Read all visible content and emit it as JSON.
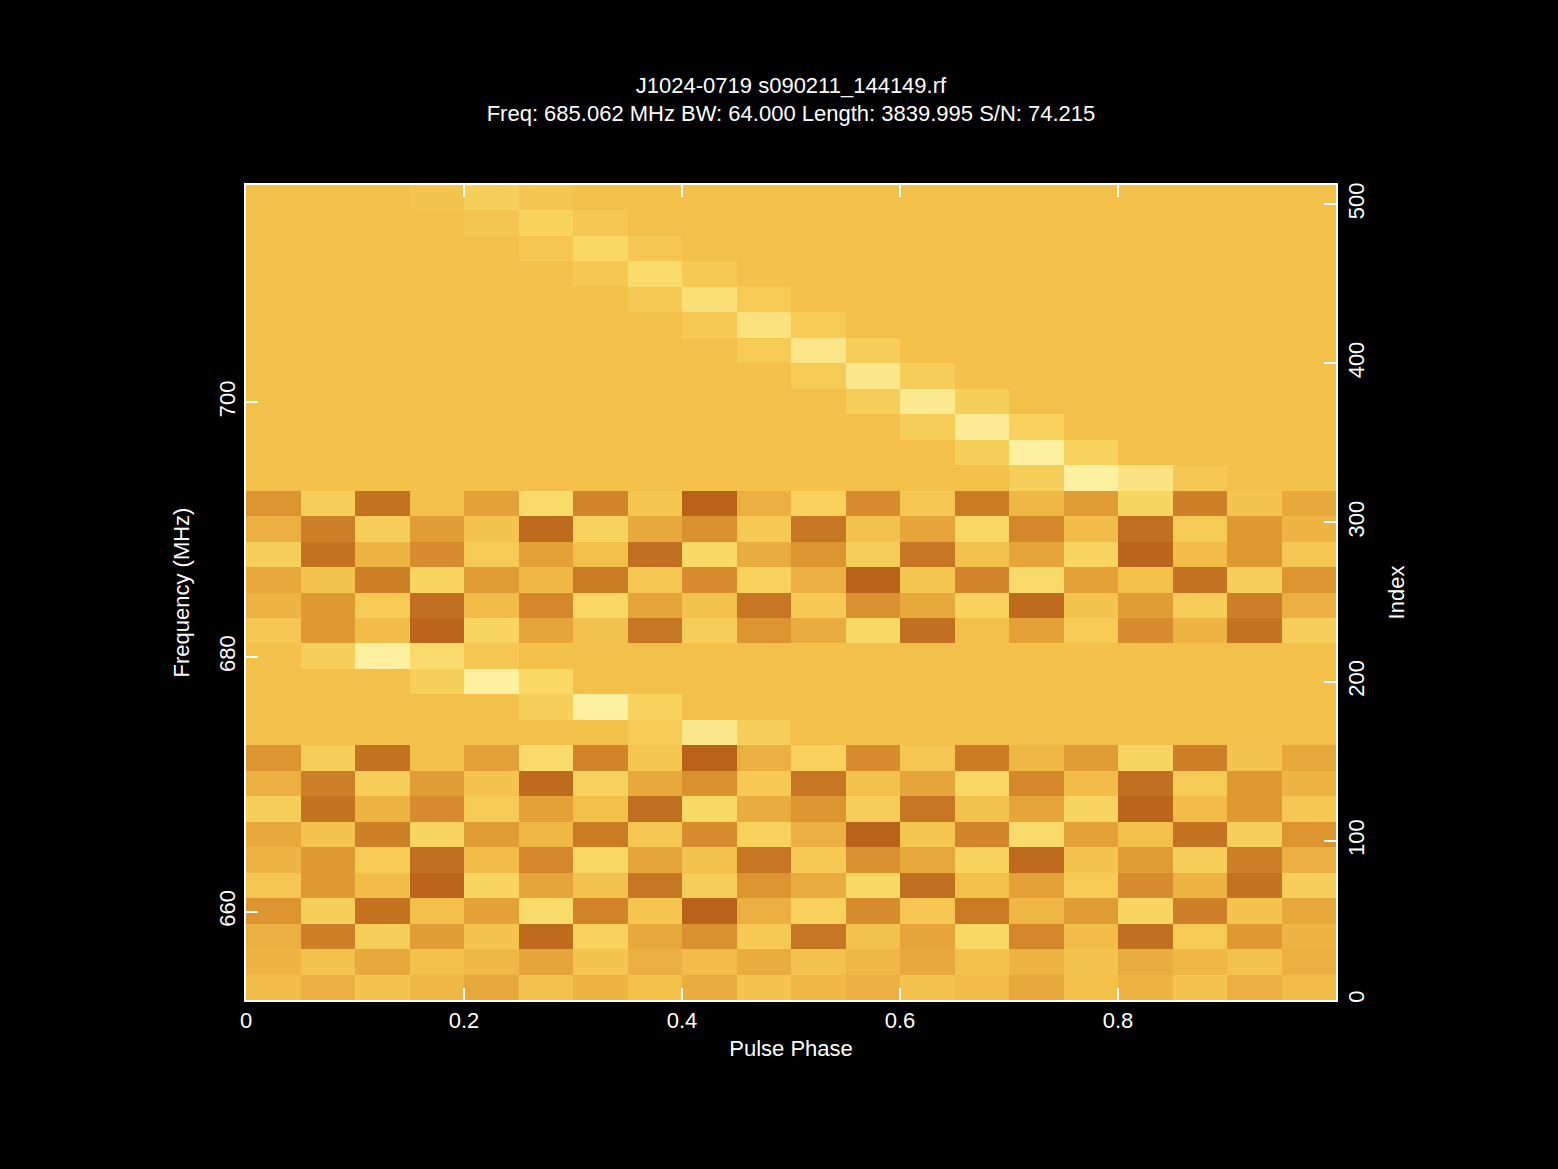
{
  "chart_data": {
    "type": "heatmap",
    "title": "J1024-0719 s090211_144149.rf",
    "subtitle": "Freq: 685.062 MHz BW: 64.000 Length: 3839.995 S/N: 74.215",
    "x_label": "Pulse Phase",
    "y_label": "Frequency (MHz)",
    "y2_label": "Index",
    "xlim": [
      0,
      1
    ],
    "xticks": [
      0,
      0.2,
      0.4,
      0.6,
      0.8
    ],
    "ylim": [
      653.062,
      717.062
    ],
    "yticks": [
      660,
      680,
      700
    ],
    "y2lim": [
      0,
      512
    ],
    "y2ticks": [
      0,
      100,
      200,
      300,
      400,
      500
    ],
    "cells": {
      "x": [
        0,
        0.05,
        0.1,
        0.15,
        0.2,
        0.25,
        0.3,
        0.35,
        0.4,
        0.45,
        0.5,
        0.55,
        0.6,
        0.65,
        0.7,
        0.75,
        0.8,
        0.85,
        0.9,
        0.95,
        1
      ],
      "y": [
        653.062,
        655.062,
        657.062,
        659.062,
        661.062,
        663.062,
        665.062,
        667.062,
        669.062,
        671.062,
        673.062,
        675.062,
        677.062,
        679.062,
        681.062,
        683.062,
        685.062,
        687.062,
        689.062,
        691.062,
        693.062,
        695.062,
        697.062,
        699.062,
        701.062,
        703.062,
        705.062,
        707.062,
        709.062,
        711.062,
        713.062,
        715.062,
        717.062
      ],
      "z": [
        [
          0.55,
          0.52,
          0.58,
          0.54,
          0.5,
          0.57,
          0.53,
          0.56,
          0.51,
          0.58,
          0.54,
          0.52,
          0.57,
          0.55,
          0.5,
          0.56,
          0.53,
          0.58,
          0.52,
          0.55
        ],
        [
          0.53,
          0.57,
          0.5,
          0.56,
          0.54,
          0.49,
          0.58,
          0.52,
          0.55,
          0.51,
          0.57,
          0.54,
          0.5,
          0.56,
          0.53,
          0.58,
          0.51,
          0.54,
          0.57,
          0.52
        ],
        [
          0.52,
          0.4,
          0.63,
          0.47,
          0.58,
          0.35,
          0.66,
          0.5,
          0.44,
          0.61,
          0.38,
          0.57,
          0.49,
          0.68,
          0.42,
          0.55,
          0.36,
          0.62,
          0.46,
          0.53
        ],
        [
          0.45,
          0.64,
          0.37,
          0.56,
          0.48,
          0.7,
          0.41,
          0.59,
          0.33,
          0.52,
          0.65,
          0.43,
          0.6,
          0.39,
          0.54,
          0.47,
          0.67,
          0.4,
          0.58,
          0.5
        ],
        [
          0.6,
          0.46,
          0.55,
          0.34,
          0.67,
          0.49,
          0.57,
          0.38,
          0.63,
          0.45,
          0.51,
          0.69,
          0.36,
          0.56,
          0.48,
          0.62,
          0.43,
          0.53,
          0.37,
          0.64
        ],
        [
          0.53,
          0.46,
          0.62,
          0.36,
          0.55,
          0.42,
          0.68,
          0.49,
          0.57,
          0.38,
          0.61,
          0.44,
          0.5,
          0.66,
          0.35,
          0.58,
          0.47,
          0.63,
          0.4,
          0.52
        ],
        [
          0.5,
          0.58,
          0.4,
          0.67,
          0.47,
          0.54,
          0.39,
          0.6,
          0.43,
          0.65,
          0.52,
          0.33,
          0.59,
          0.41,
          0.7,
          0.48,
          0.56,
          0.37,
          0.64,
          0.45
        ],
        [
          0.64,
          0.37,
          0.53,
          0.43,
          0.62,
          0.48,
          0.56,
          0.36,
          0.69,
          0.51,
          0.45,
          0.63,
          0.38,
          0.57,
          0.49,
          0.67,
          0.34,
          0.55,
          0.46,
          0.6
        ],
        [
          0.52,
          0.4,
          0.63,
          0.47,
          0.58,
          0.35,
          0.66,
          0.5,
          0.44,
          0.61,
          0.38,
          0.57,
          0.49,
          0.68,
          0.42,
          0.55,
          0.36,
          0.62,
          0.46,
          0.53
        ],
        [
          0.45,
          0.64,
          0.37,
          0.56,
          0.48,
          0.7,
          0.41,
          0.59,
          0.33,
          0.52,
          0.65,
          0.43,
          0.6,
          0.39,
          0.54,
          0.47,
          0.67,
          0.4,
          0.58,
          0.5
        ],
        [
          0.56,
          0.56,
          0.56,
          0.56,
          0.56,
          0.56,
          0.56,
          0.62,
          0.76,
          0.64,
          0.56,
          0.56,
          0.56,
          0.56,
          0.56,
          0.56,
          0.56,
          0.56,
          0.56,
          0.56
        ],
        [
          0.56,
          0.56,
          0.56,
          0.56,
          0.56,
          0.64,
          0.8,
          0.66,
          0.56,
          0.56,
          0.56,
          0.56,
          0.56,
          0.56,
          0.56,
          0.56,
          0.56,
          0.56,
          0.56,
          0.56
        ],
        [
          0.56,
          0.56,
          0.56,
          0.64,
          0.8,
          0.68,
          0.56,
          0.56,
          0.56,
          0.56,
          0.56,
          0.56,
          0.56,
          0.56,
          0.56,
          0.56,
          0.56,
          0.56,
          0.56,
          0.56
        ],
        [
          0.56,
          0.64,
          0.8,
          0.7,
          0.6,
          0.56,
          0.56,
          0.56,
          0.56,
          0.56,
          0.56,
          0.56,
          0.56,
          0.56,
          0.56,
          0.56,
          0.56,
          0.56,
          0.56,
          0.56
        ],
        [
          0.6,
          0.46,
          0.55,
          0.34,
          0.67,
          0.49,
          0.57,
          0.38,
          0.63,
          0.45,
          0.51,
          0.69,
          0.36,
          0.56,
          0.48,
          0.62,
          0.43,
          0.53,
          0.37,
          0.64
        ],
        [
          0.53,
          0.46,
          0.62,
          0.36,
          0.55,
          0.42,
          0.68,
          0.49,
          0.57,
          0.38,
          0.61,
          0.44,
          0.5,
          0.66,
          0.35,
          0.58,
          0.47,
          0.63,
          0.4,
          0.52
        ],
        [
          0.5,
          0.58,
          0.4,
          0.67,
          0.47,
          0.54,
          0.39,
          0.6,
          0.43,
          0.65,
          0.52,
          0.33,
          0.59,
          0.41,
          0.7,
          0.48,
          0.56,
          0.37,
          0.64,
          0.45
        ],
        [
          0.64,
          0.37,
          0.53,
          0.43,
          0.62,
          0.48,
          0.56,
          0.36,
          0.69,
          0.51,
          0.45,
          0.63,
          0.38,
          0.57,
          0.49,
          0.67,
          0.34,
          0.55,
          0.46,
          0.6
        ],
        [
          0.52,
          0.4,
          0.63,
          0.47,
          0.58,
          0.35,
          0.66,
          0.5,
          0.44,
          0.61,
          0.38,
          0.57,
          0.49,
          0.68,
          0.42,
          0.55,
          0.36,
          0.62,
          0.46,
          0.53
        ],
        [
          0.45,
          0.64,
          0.37,
          0.56,
          0.48,
          0.7,
          0.41,
          0.59,
          0.33,
          0.52,
          0.65,
          0.43,
          0.6,
          0.39,
          0.54,
          0.47,
          0.67,
          0.4,
          0.58,
          0.5
        ],
        [
          0.56,
          0.56,
          0.56,
          0.56,
          0.56,
          0.56,
          0.56,
          0.56,
          0.56,
          0.56,
          0.56,
          0.56,
          0.56,
          0.56,
          0.64,
          0.8,
          0.74,
          0.6,
          0.56,
          0.56
        ],
        [
          0.56,
          0.56,
          0.56,
          0.56,
          0.56,
          0.56,
          0.56,
          0.56,
          0.56,
          0.56,
          0.56,
          0.56,
          0.56,
          0.64,
          0.8,
          0.66,
          0.56,
          0.56,
          0.56,
          0.56
        ],
        [
          0.56,
          0.56,
          0.56,
          0.56,
          0.56,
          0.56,
          0.56,
          0.56,
          0.56,
          0.56,
          0.56,
          0.56,
          0.63,
          0.78,
          0.65,
          0.56,
          0.56,
          0.56,
          0.56,
          0.56
        ],
        [
          0.56,
          0.56,
          0.56,
          0.56,
          0.56,
          0.56,
          0.56,
          0.56,
          0.56,
          0.56,
          0.56,
          0.63,
          0.77,
          0.64,
          0.56,
          0.56,
          0.56,
          0.56,
          0.56,
          0.56
        ],
        [
          0.56,
          0.56,
          0.56,
          0.56,
          0.56,
          0.56,
          0.56,
          0.56,
          0.56,
          0.56,
          0.62,
          0.76,
          0.63,
          0.56,
          0.56,
          0.56,
          0.56,
          0.56,
          0.56,
          0.56
        ],
        [
          0.56,
          0.56,
          0.56,
          0.56,
          0.56,
          0.56,
          0.56,
          0.56,
          0.56,
          0.62,
          0.75,
          0.63,
          0.56,
          0.56,
          0.56,
          0.56,
          0.56,
          0.56,
          0.56,
          0.56
        ],
        [
          0.56,
          0.56,
          0.56,
          0.56,
          0.56,
          0.56,
          0.56,
          0.56,
          0.61,
          0.73,
          0.62,
          0.56,
          0.56,
          0.56,
          0.56,
          0.56,
          0.56,
          0.56,
          0.56,
          0.56
        ],
        [
          0.56,
          0.56,
          0.56,
          0.56,
          0.56,
          0.56,
          0.56,
          0.61,
          0.72,
          0.62,
          0.56,
          0.56,
          0.56,
          0.56,
          0.56,
          0.56,
          0.56,
          0.56,
          0.56,
          0.56
        ],
        [
          0.56,
          0.56,
          0.56,
          0.56,
          0.56,
          0.56,
          0.6,
          0.7,
          0.61,
          0.56,
          0.56,
          0.56,
          0.56,
          0.56,
          0.56,
          0.56,
          0.56,
          0.56,
          0.56,
          0.56
        ],
        [
          0.56,
          0.56,
          0.56,
          0.56,
          0.56,
          0.6,
          0.68,
          0.6,
          0.56,
          0.56,
          0.56,
          0.56,
          0.56,
          0.56,
          0.56,
          0.56,
          0.56,
          0.56,
          0.56,
          0.56
        ],
        [
          0.56,
          0.56,
          0.56,
          0.56,
          0.59,
          0.66,
          0.6,
          0.56,
          0.56,
          0.56,
          0.56,
          0.56,
          0.56,
          0.56,
          0.56,
          0.56,
          0.56,
          0.56,
          0.56,
          0.56
        ],
        [
          0.56,
          0.56,
          0.56,
          0.58,
          0.64,
          0.59,
          0.56,
          0.56,
          0.56,
          0.56,
          0.56,
          0.56,
          0.56,
          0.56,
          0.56,
          0.56,
          0.56,
          0.56,
          0.56,
          0.56
        ]
      ]
    }
  }
}
